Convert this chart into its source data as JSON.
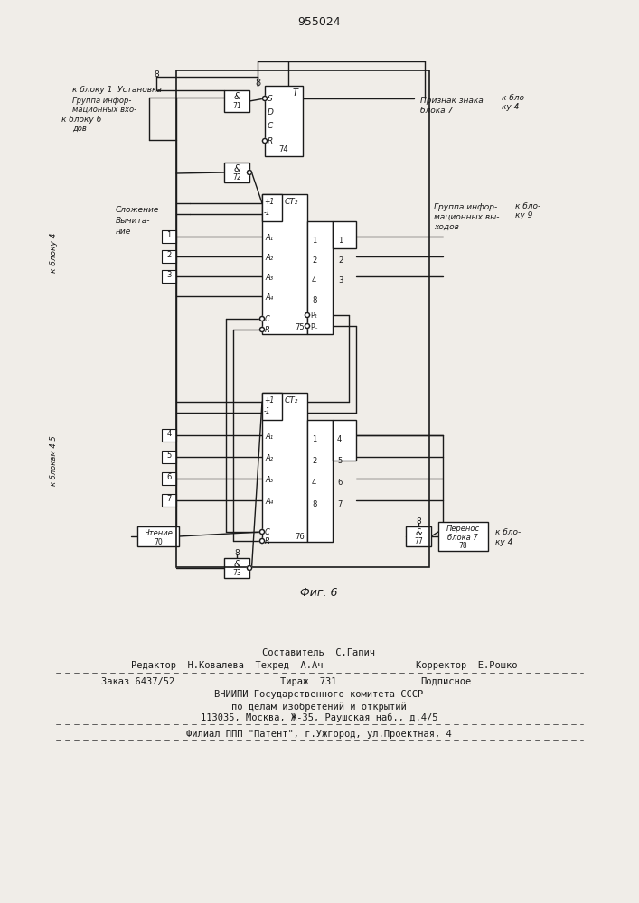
{
  "title": "955024",
  "fig_label": "Фиг. 6",
  "bg": "#f0ede8",
  "lc": "#1a1a1a",
  "footer": {
    "line1": "Составитель  С.Гапич",
    "line2_left": "Редактор  Н.Ковалева  Техред  А.Ач",
    "line2_right": "Корректор  Е.Рошко",
    "order": "Заказ 6437/52",
    "tirazh": "Тираж  731",
    "podp": "Подписное",
    "vniip1": "ВНИИПИ Государственного комитета СССР",
    "vniip2": "по делам изобретений и открытий",
    "vniip3": "113035, Москва, Ж-35, Раушская наб., д.4/5",
    "filial": "Филиал ППП \"Патент\", г.Ужгород, ул.Проектная, 4"
  }
}
